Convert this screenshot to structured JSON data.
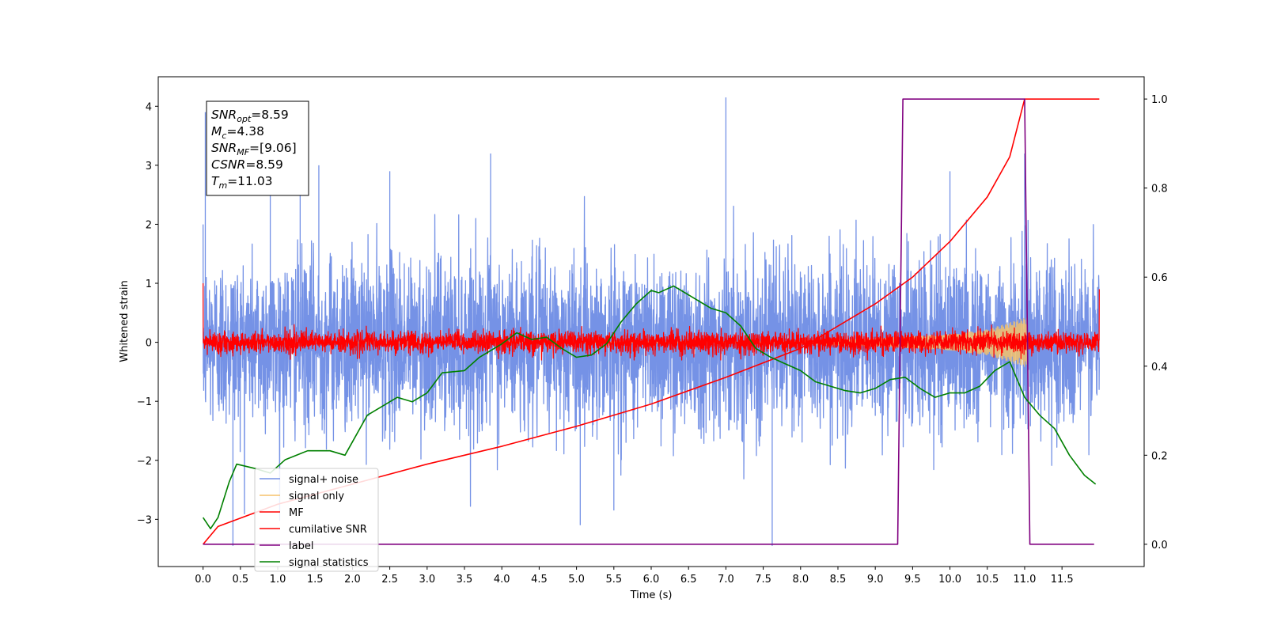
{
  "chart_data": {
    "type": "line",
    "xlabel": "Time (s)",
    "ylabel": "Whitened strain",
    "xlim": [
      -0.6,
      12.6
    ],
    "ylim": [
      -3.8,
      4.5
    ],
    "ylim_right": [
      -0.05,
      1.05
    ],
    "x_ticks": [
      0.0,
      0.5,
      1.0,
      1.5,
      2.0,
      2.5,
      3.0,
      3.5,
      4.0,
      4.5,
      5.0,
      5.5,
      6.0,
      6.5,
      7.0,
      7.5,
      8.0,
      8.5,
      9.0,
      9.5,
      10.0,
      10.5,
      11.0,
      11.5
    ],
    "x_tick_labels": [
      "0.0",
      "0.5",
      "1.0",
      "1.5",
      "2.0",
      "2.5",
      "3.0",
      "3.5",
      "4.0",
      "4.5",
      "5.0",
      "5.5",
      "6.0",
      "6.5",
      "7.0",
      "7.5",
      "8.0",
      "8.5",
      "9.0",
      "9.5",
      "10.0",
      "10.5",
      "11.0",
      "11.5"
    ],
    "y_ticks": [
      4,
      3,
      2,
      1,
      0,
      -1,
      -2,
      -3
    ],
    "y_tick_labels": [
      "4",
      "3",
      "2",
      "1",
      "0",
      "−1",
      "−2",
      "−3"
    ],
    "y_right_ticks": [
      1.0,
      0.8,
      0.6,
      0.4,
      0.2,
      0.0
    ],
    "y_right_tick_labels": [
      "1.0",
      "0.8",
      "0.6",
      "0.4",
      "0.2",
      "0.0"
    ],
    "grid": false,
    "legend_placement": "lower-left",
    "series": [
      {
        "name": "signal+ noise",
        "axis": "left",
        "color": "#7592e6",
        "style": "noise",
        "x_range": [
          0.0,
          12.0
        ],
        "amplitude_std": 0.72,
        "spikes": [
          [
            0.03,
            3.9
          ],
          [
            0.4,
            -3.45
          ],
          [
            0.9,
            2.95
          ],
          [
            1.3,
            3.0
          ],
          [
            1.55,
            3.0
          ],
          [
            2.5,
            2.9
          ],
          [
            3.85,
            3.2
          ],
          [
            7.0,
            4.15
          ],
          [
            7.62,
            -3.45
          ],
          [
            10.0,
            2.9
          ],
          [
            11.0,
            3.2
          ],
          [
            5.05,
            -3.1
          ],
          [
            5.5,
            -2.85
          ]
        ]
      },
      {
        "name": "signal only",
        "axis": "left",
        "color": "#f5c26b",
        "style": "chirp",
        "x_range": [
          0.0,
          11.03
        ],
        "envelope": [
          [
            8.0,
            0.03
          ],
          [
            9.0,
            0.07
          ],
          [
            10.0,
            0.14
          ],
          [
            10.5,
            0.22
          ],
          [
            11.0,
            0.42
          ]
        ]
      },
      {
        "name": "MF",
        "axis": "left",
        "color": "#ff0000",
        "style": "noise",
        "x_range": [
          0.0,
          12.0
        ],
        "amplitude_std": 0.09,
        "clip": 0.3,
        "edge_start": 1.0,
        "edge_end": 0.9
      },
      {
        "name": "cumilative SNR",
        "axis": "right",
        "color": "#ff0000",
        "style": "line",
        "points": [
          [
            0.0,
            0.0
          ],
          [
            0.2,
            0.04
          ],
          [
            1.0,
            0.09
          ],
          [
            2.0,
            0.135
          ],
          [
            3.0,
            0.18
          ],
          [
            4.0,
            0.22
          ],
          [
            5.0,
            0.265
          ],
          [
            6.0,
            0.315
          ],
          [
            7.0,
            0.375
          ],
          [
            8.0,
            0.44
          ],
          [
            9.0,
            0.54
          ],
          [
            9.5,
            0.6
          ],
          [
            10.0,
            0.68
          ],
          [
            10.5,
            0.78
          ],
          [
            10.8,
            0.87
          ],
          [
            11.0,
            1.0
          ],
          [
            12.0,
            1.0
          ]
        ]
      },
      {
        "name": "label",
        "axis": "right",
        "color": "#800080",
        "style": "step",
        "points": [
          [
            0.0,
            0.0
          ],
          [
            9.3,
            0.0
          ],
          [
            9.37,
            1.0
          ],
          [
            11.0,
            1.0
          ],
          [
            11.07,
            0.0
          ],
          [
            11.93,
            0.0
          ]
        ]
      },
      {
        "name": "signal statistics",
        "axis": "right",
        "color": "#008000",
        "style": "line",
        "points": [
          [
            0.0,
            0.06
          ],
          [
            0.1,
            0.035
          ],
          [
            0.2,
            0.06
          ],
          [
            0.35,
            0.14
          ],
          [
            0.45,
            0.18
          ],
          [
            0.7,
            0.17
          ],
          [
            0.9,
            0.16
          ],
          [
            1.1,
            0.19
          ],
          [
            1.4,
            0.21
          ],
          [
            1.7,
            0.21
          ],
          [
            1.9,
            0.2
          ],
          [
            2.0,
            0.23
          ],
          [
            2.2,
            0.29
          ],
          [
            2.4,
            0.31
          ],
          [
            2.6,
            0.33
          ],
          [
            2.8,
            0.32
          ],
          [
            3.0,
            0.34
          ],
          [
            3.2,
            0.385
          ],
          [
            3.5,
            0.39
          ],
          [
            3.7,
            0.42
          ],
          [
            4.0,
            0.45
          ],
          [
            4.2,
            0.475
          ],
          [
            4.4,
            0.46
          ],
          [
            4.6,
            0.465
          ],
          [
            4.8,
            0.44
          ],
          [
            5.0,
            0.42
          ],
          [
            5.2,
            0.425
          ],
          [
            5.4,
            0.45
          ],
          [
            5.6,
            0.5
          ],
          [
            5.8,
            0.54
          ],
          [
            6.0,
            0.57
          ],
          [
            6.1,
            0.565
          ],
          [
            6.3,
            0.58
          ],
          [
            6.5,
            0.56
          ],
          [
            6.8,
            0.53
          ],
          [
            7.0,
            0.52
          ],
          [
            7.2,
            0.49
          ],
          [
            7.4,
            0.44
          ],
          [
            7.6,
            0.42
          ],
          [
            7.8,
            0.405
          ],
          [
            8.0,
            0.39
          ],
          [
            8.2,
            0.365
          ],
          [
            8.4,
            0.355
          ],
          [
            8.6,
            0.345
          ],
          [
            8.8,
            0.34
          ],
          [
            9.0,
            0.35
          ],
          [
            9.2,
            0.37
          ],
          [
            9.4,
            0.375
          ],
          [
            9.6,
            0.35
          ],
          [
            9.8,
            0.33
          ],
          [
            10.0,
            0.34
          ],
          [
            10.2,
            0.34
          ],
          [
            10.4,
            0.355
          ],
          [
            10.6,
            0.39
          ],
          [
            10.8,
            0.41
          ],
          [
            11.0,
            0.33
          ],
          [
            11.2,
            0.29
          ],
          [
            11.4,
            0.26
          ],
          [
            11.6,
            0.2
          ],
          [
            11.8,
            0.155
          ],
          [
            11.95,
            0.135
          ]
        ]
      }
    ],
    "legend_entries": [
      {
        "label": "signal+ noise",
        "color": "#7592e6"
      },
      {
        "label": "signal only",
        "color": "#f5c26b"
      },
      {
        "label": "MF",
        "color": "#ff0000"
      },
      {
        "label": "cumilative SNR",
        "color": "#ff0000"
      },
      {
        "label": "label",
        "color": "#800080"
      },
      {
        "label": "signal statistics",
        "color": "#008000"
      }
    ],
    "annotation": [
      {
        "name": "SNR",
        "sub": "opt",
        "value": "=8.59"
      },
      {
        "name": "M",
        "sub": "c",
        "value": "=4.38"
      },
      {
        "name": "SNR",
        "sub": "MF",
        "value": "=[9.06]"
      },
      {
        "name": "CSNR",
        "sub": "",
        "value": "=8.59"
      },
      {
        "name": "T",
        "sub": "m",
        "value": "=11.03"
      }
    ]
  }
}
